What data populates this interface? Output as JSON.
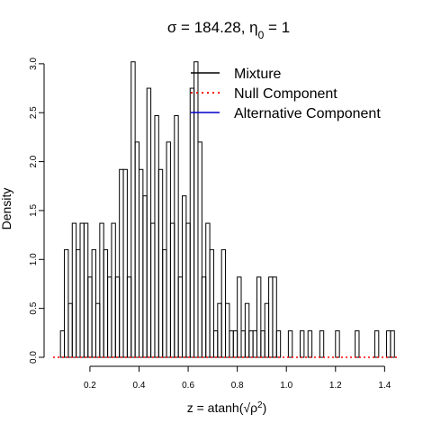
{
  "chart_data": {
    "type": "bar",
    "title": {
      "sigma_symbol": "σ",
      "sigma_value": "184.28",
      "eta_symbol": "η",
      "eta_subscript": "0",
      "eta_value": "1"
    },
    "xlabel": {
      "prefix": "z = atanh(",
      "rho": "ρ",
      "exponent": "2",
      "suffix": ")"
    },
    "ylabel": "Density",
    "xlim": [
      0.05,
      1.45
    ],
    "ylim": [
      0,
      3.1
    ],
    "xticks": [
      "0.2",
      "0.4",
      "0.6",
      "0.8",
      "1.0",
      "1.2",
      "1.4"
    ],
    "yticks": [
      "0.0",
      "0.5",
      "1.0",
      "1.5",
      "2.0",
      "2.5",
      "3.0"
    ],
    "bin_width": 0.016,
    "bins": {
      "x_start": [
        0.08,
        0.096,
        0.112,
        0.128,
        0.144,
        0.16,
        0.176,
        0.192,
        0.208,
        0.224,
        0.24,
        0.256,
        0.272,
        0.288,
        0.304,
        0.32,
        0.336,
        0.352,
        0.368,
        0.384,
        0.4,
        0.416,
        0.432,
        0.448,
        0.464,
        0.48,
        0.496,
        0.512,
        0.528,
        0.544,
        0.56,
        0.576,
        0.592,
        0.608,
        0.624,
        0.64,
        0.656,
        0.672,
        0.688,
        0.704,
        0.72,
        0.736,
        0.752,
        0.768,
        0.784,
        0.8,
        0.816,
        0.832,
        0.848,
        0.864,
        0.88,
        0.896,
        0.912,
        0.928,
        0.944,
        0.96,
        0.976,
        0.992,
        1.008,
        1.024,
        1.04,
        1.056,
        1.072,
        1.088,
        1.104,
        1.12,
        1.136,
        1.152,
        1.168,
        1.184,
        1.2,
        1.216,
        1.232,
        1.248,
        1.264,
        1.28,
        1.296,
        1.312,
        1.328,
        1.344,
        1.36,
        1.376,
        1.392,
        1.408,
        1.424
      ],
      "density": [
        0.27,
        1.1,
        0.55,
        1.37,
        1.1,
        1.37,
        1.37,
        0.82,
        1.1,
        0.55,
        1.37,
        1.1,
        0.82,
        1.37,
        0.82,
        1.92,
        1.92,
        0.82,
        3.02,
        2.2,
        1.92,
        1.65,
        2.75,
        1.37,
        2.47,
        1.92,
        1.1,
        2.2,
        1.37,
        2.47,
        0.82,
        1.65,
        1.37,
        2.75,
        3.02,
        2.2,
        0.82,
        1.37,
        1.1,
        0.27,
        0.55,
        1.1,
        0.55,
        0.27,
        0.27,
        0.82,
        0.27,
        0.55,
        0.27,
        0.27,
        0.82,
        0.27,
        0.55,
        0.82,
        0.82,
        0.27,
        0,
        0,
        0.27,
        0,
        0,
        0.27,
        0,
        0.27,
        0,
        0,
        0.27,
        0,
        0,
        0,
        0.27,
        0,
        0,
        0,
        0,
        0.27,
        0,
        0,
        0,
        0,
        0.27,
        0,
        0,
        0.27,
        0.27
      ]
    },
    "legend": {
      "position": "top-right",
      "entries": [
        {
          "name": "Mixture",
          "color": "#000000",
          "style": "solid"
        },
        {
          "name": "Null Component",
          "color": "#ff0000",
          "style": "dotted"
        },
        {
          "name": "Alternative Component",
          "color": "#0000cc",
          "style": "solid"
        }
      ]
    },
    "null_component_density": 0,
    "grid": false
  }
}
